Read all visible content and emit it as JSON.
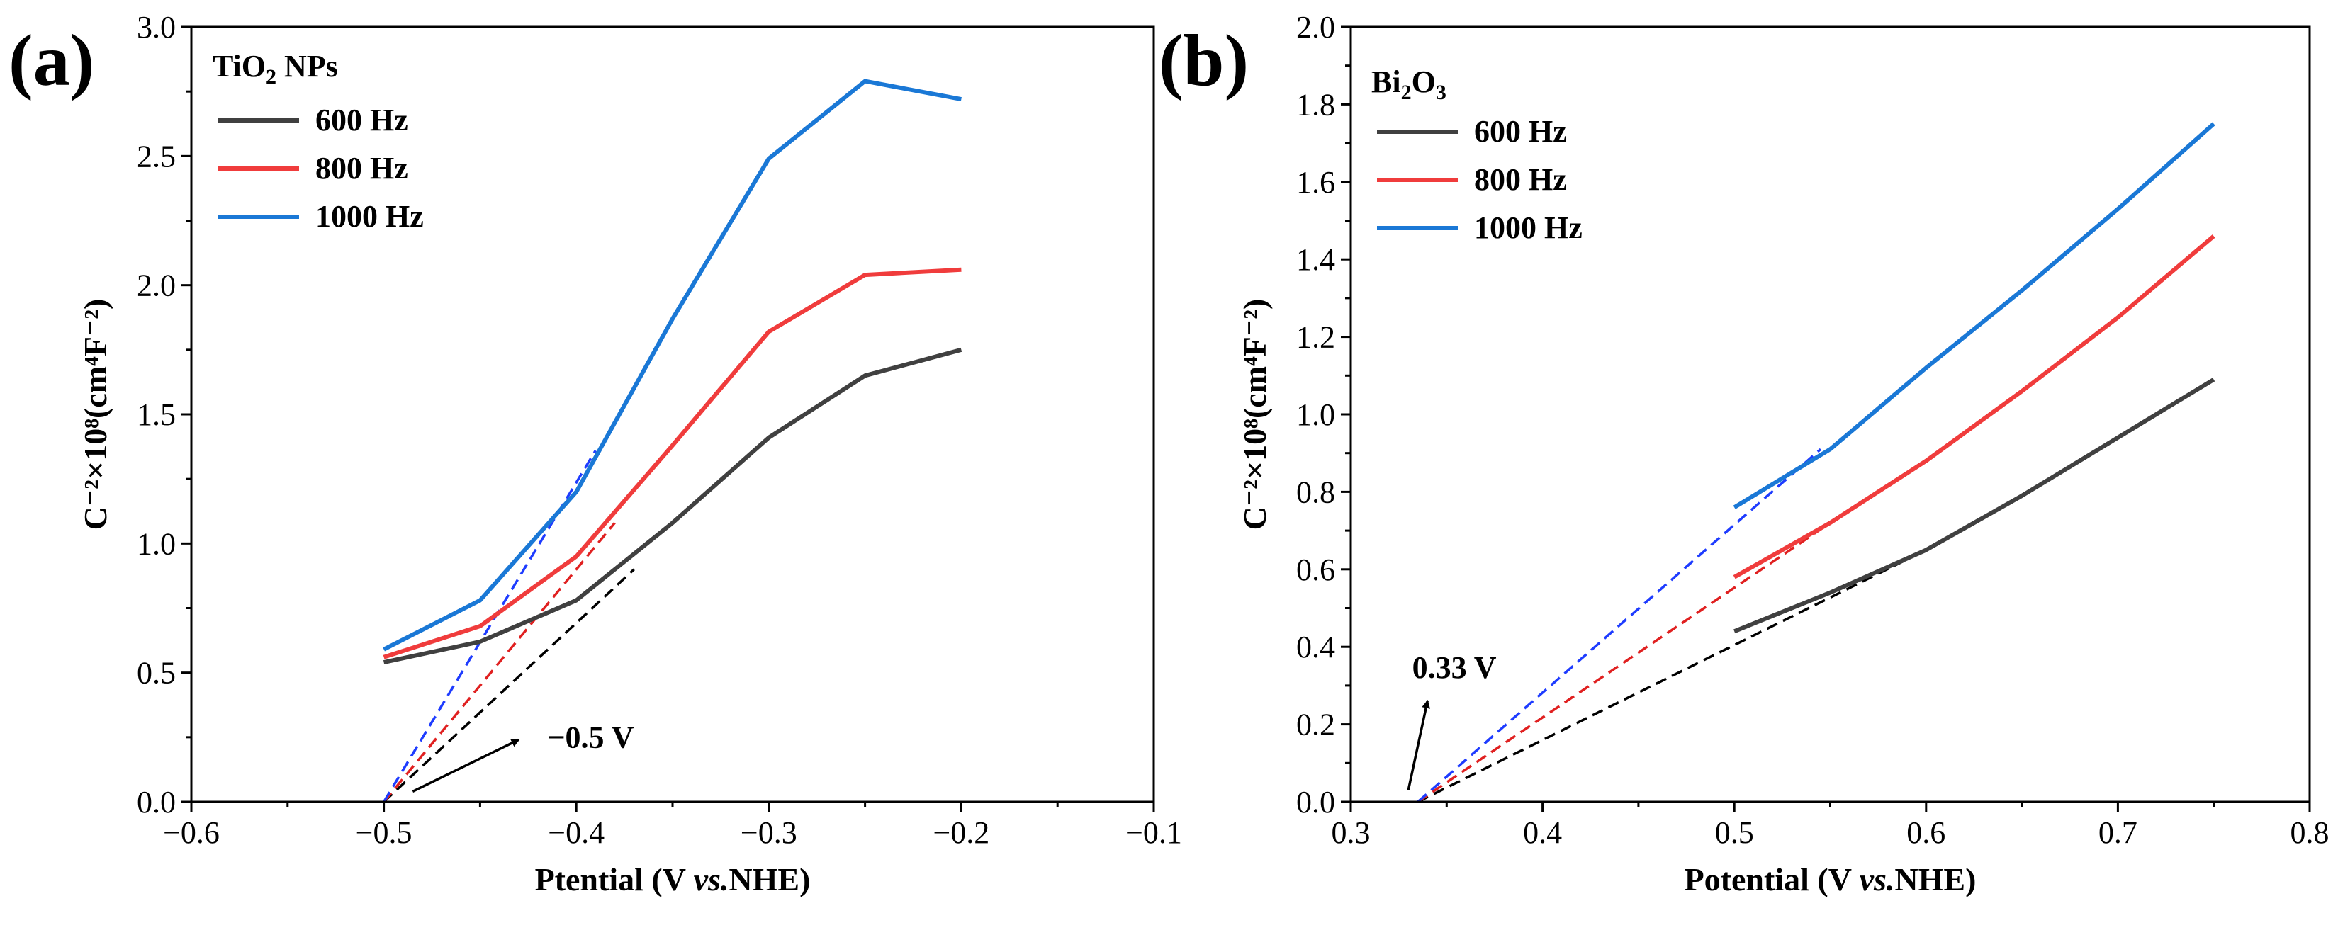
{
  "chart_data": [
    {
      "type": "line",
      "panel_label": "(a)",
      "legend_title": "TiO",
      "legend_title_sub": "2",
      "legend_title_suffix": " NPs",
      "xlabel_pre": "Ptential (V ",
      "xlabel_italic": "vs.",
      "xlabel_post": "NHE)",
      "ylabel": "C⁻²×10⁸(cm⁴F⁻²)",
      "xlim": [
        -0.6,
        -0.1
      ],
      "ylim": [
        0,
        3.0
      ],
      "xticks": [
        -0.6,
        -0.5,
        -0.4,
        -0.3,
        -0.2,
        -0.1
      ],
      "xtick_labels": [
        "−0.6",
        "−0.5",
        "−0.4",
        "−0.3",
        "−0.2",
        "−0.1"
      ],
      "yticks": [
        0,
        0.5,
        1.0,
        1.5,
        2.0,
        2.5,
        3.0
      ],
      "ytick_labels": [
        "0.0",
        "0.5",
        "1.0",
        "1.5",
        "2.0",
        "2.5",
        "3.0"
      ],
      "legend_position": "top-left",
      "series": [
        {
          "name": "600 Hz",
          "color": "#404040",
          "x": [
            -0.5,
            -0.45,
            -0.4,
            -0.35,
            -0.3,
            -0.25,
            -0.2
          ],
          "y": [
            0.54,
            0.62,
            0.78,
            1.08,
            1.41,
            1.65,
            1.75
          ]
        },
        {
          "name": "800 Hz",
          "color": "#f03c3c",
          "x": [
            -0.5,
            -0.45,
            -0.4,
            -0.35,
            -0.3,
            -0.25,
            -0.2
          ],
          "y": [
            0.56,
            0.68,
            0.95,
            1.38,
            1.82,
            2.04,
            2.06
          ]
        },
        {
          "name": "1000 Hz",
          "color": "#1a78d6",
          "x": [
            -0.5,
            -0.45,
            -0.4,
            -0.35,
            -0.3,
            -0.25,
            -0.2
          ],
          "y": [
            0.59,
            0.78,
            1.2,
            1.87,
            2.49,
            2.79,
            2.72
          ]
        }
      ],
      "fits": [
        {
          "color": "#000000",
          "x": [
            -0.5,
            -0.37
          ],
          "y": [
            0.0,
            0.9
          ]
        },
        {
          "color": "#e02020",
          "x": [
            -0.5,
            -0.38
          ],
          "y": [
            0.0,
            1.08
          ]
        },
        {
          "color": "#1e3cff",
          "x": [
            -0.5,
            -0.39
          ],
          "y": [
            0.0,
            1.36
          ]
        }
      ],
      "annotation": {
        "text": "−0.5 V",
        "x": -0.5,
        "y": 0.0,
        "text_x": -0.415,
        "text_y": 0.21,
        "arrow_from": [
          -0.485,
          0.04
        ],
        "arrow_to": [
          -0.43,
          0.24
        ]
      }
    },
    {
      "type": "line",
      "panel_label": "(b)",
      "legend_title": "Bi",
      "legend_title_sub": "2",
      "legend_title_suffix2": "O",
      "legend_title_sub2": "3",
      "xlabel_pre": "Potential (V ",
      "xlabel_italic": "vs.",
      "xlabel_post": "NHE)",
      "ylabel": "C⁻²×10⁸(cm⁴F⁻²)",
      "xlim": [
        0.3,
        0.8
      ],
      "ylim": [
        0,
        2.0
      ],
      "xticks": [
        0.3,
        0.4,
        0.5,
        0.6,
        0.7,
        0.8
      ],
      "xtick_labels": [
        "0.3",
        "0.4",
        "0.5",
        "0.6",
        "0.7",
        "0.8"
      ],
      "yticks": [
        0,
        0.2,
        0.4,
        0.6,
        0.8,
        1.0,
        1.2,
        1.4,
        1.6,
        1.8,
        2.0
      ],
      "ytick_labels": [
        "0.0",
        "0.2",
        "0.4",
        "0.6",
        "0.8",
        "1.0",
        "1.2",
        "1.4",
        "1.6",
        "1.8",
        "2.0"
      ],
      "legend_position": "top-left",
      "series": [
        {
          "name": "600 Hz",
          "color": "#404040",
          "x": [
            0.5,
            0.55,
            0.6,
            0.65,
            0.7,
            0.75
          ],
          "y": [
            0.44,
            0.54,
            0.65,
            0.79,
            0.94,
            1.09
          ]
        },
        {
          "name": "800 Hz",
          "color": "#f03c3c",
          "x": [
            0.5,
            0.55,
            0.6,
            0.65,
            0.7,
            0.75
          ],
          "y": [
            0.58,
            0.72,
            0.88,
            1.06,
            1.25,
            1.46
          ]
        },
        {
          "name": "1000 Hz",
          "color": "#1a78d6",
          "x": [
            0.5,
            0.55,
            0.6,
            0.65,
            0.7,
            0.75
          ],
          "y": [
            0.76,
            0.91,
            1.12,
            1.32,
            1.53,
            1.75
          ]
        }
      ],
      "fits": [
        {
          "color": "#000000",
          "x": [
            0.335,
            0.6
          ],
          "y": [
            0.0,
            0.65
          ]
        },
        {
          "color": "#e02020",
          "x": [
            0.335,
            0.55
          ],
          "y": [
            0.0,
            0.72
          ]
        },
        {
          "color": "#1e3cff",
          "x": [
            0.335,
            0.545
          ],
          "y": [
            0.0,
            0.91
          ]
        }
      ],
      "annotation": {
        "text": "0.33 V",
        "x": 0.335,
        "y": 0.0,
        "text_x": 0.332,
        "text_y": 0.32,
        "arrow_from": [
          0.33,
          0.03
        ],
        "arrow_to": [
          0.34,
          0.26
        ]
      }
    }
  ]
}
